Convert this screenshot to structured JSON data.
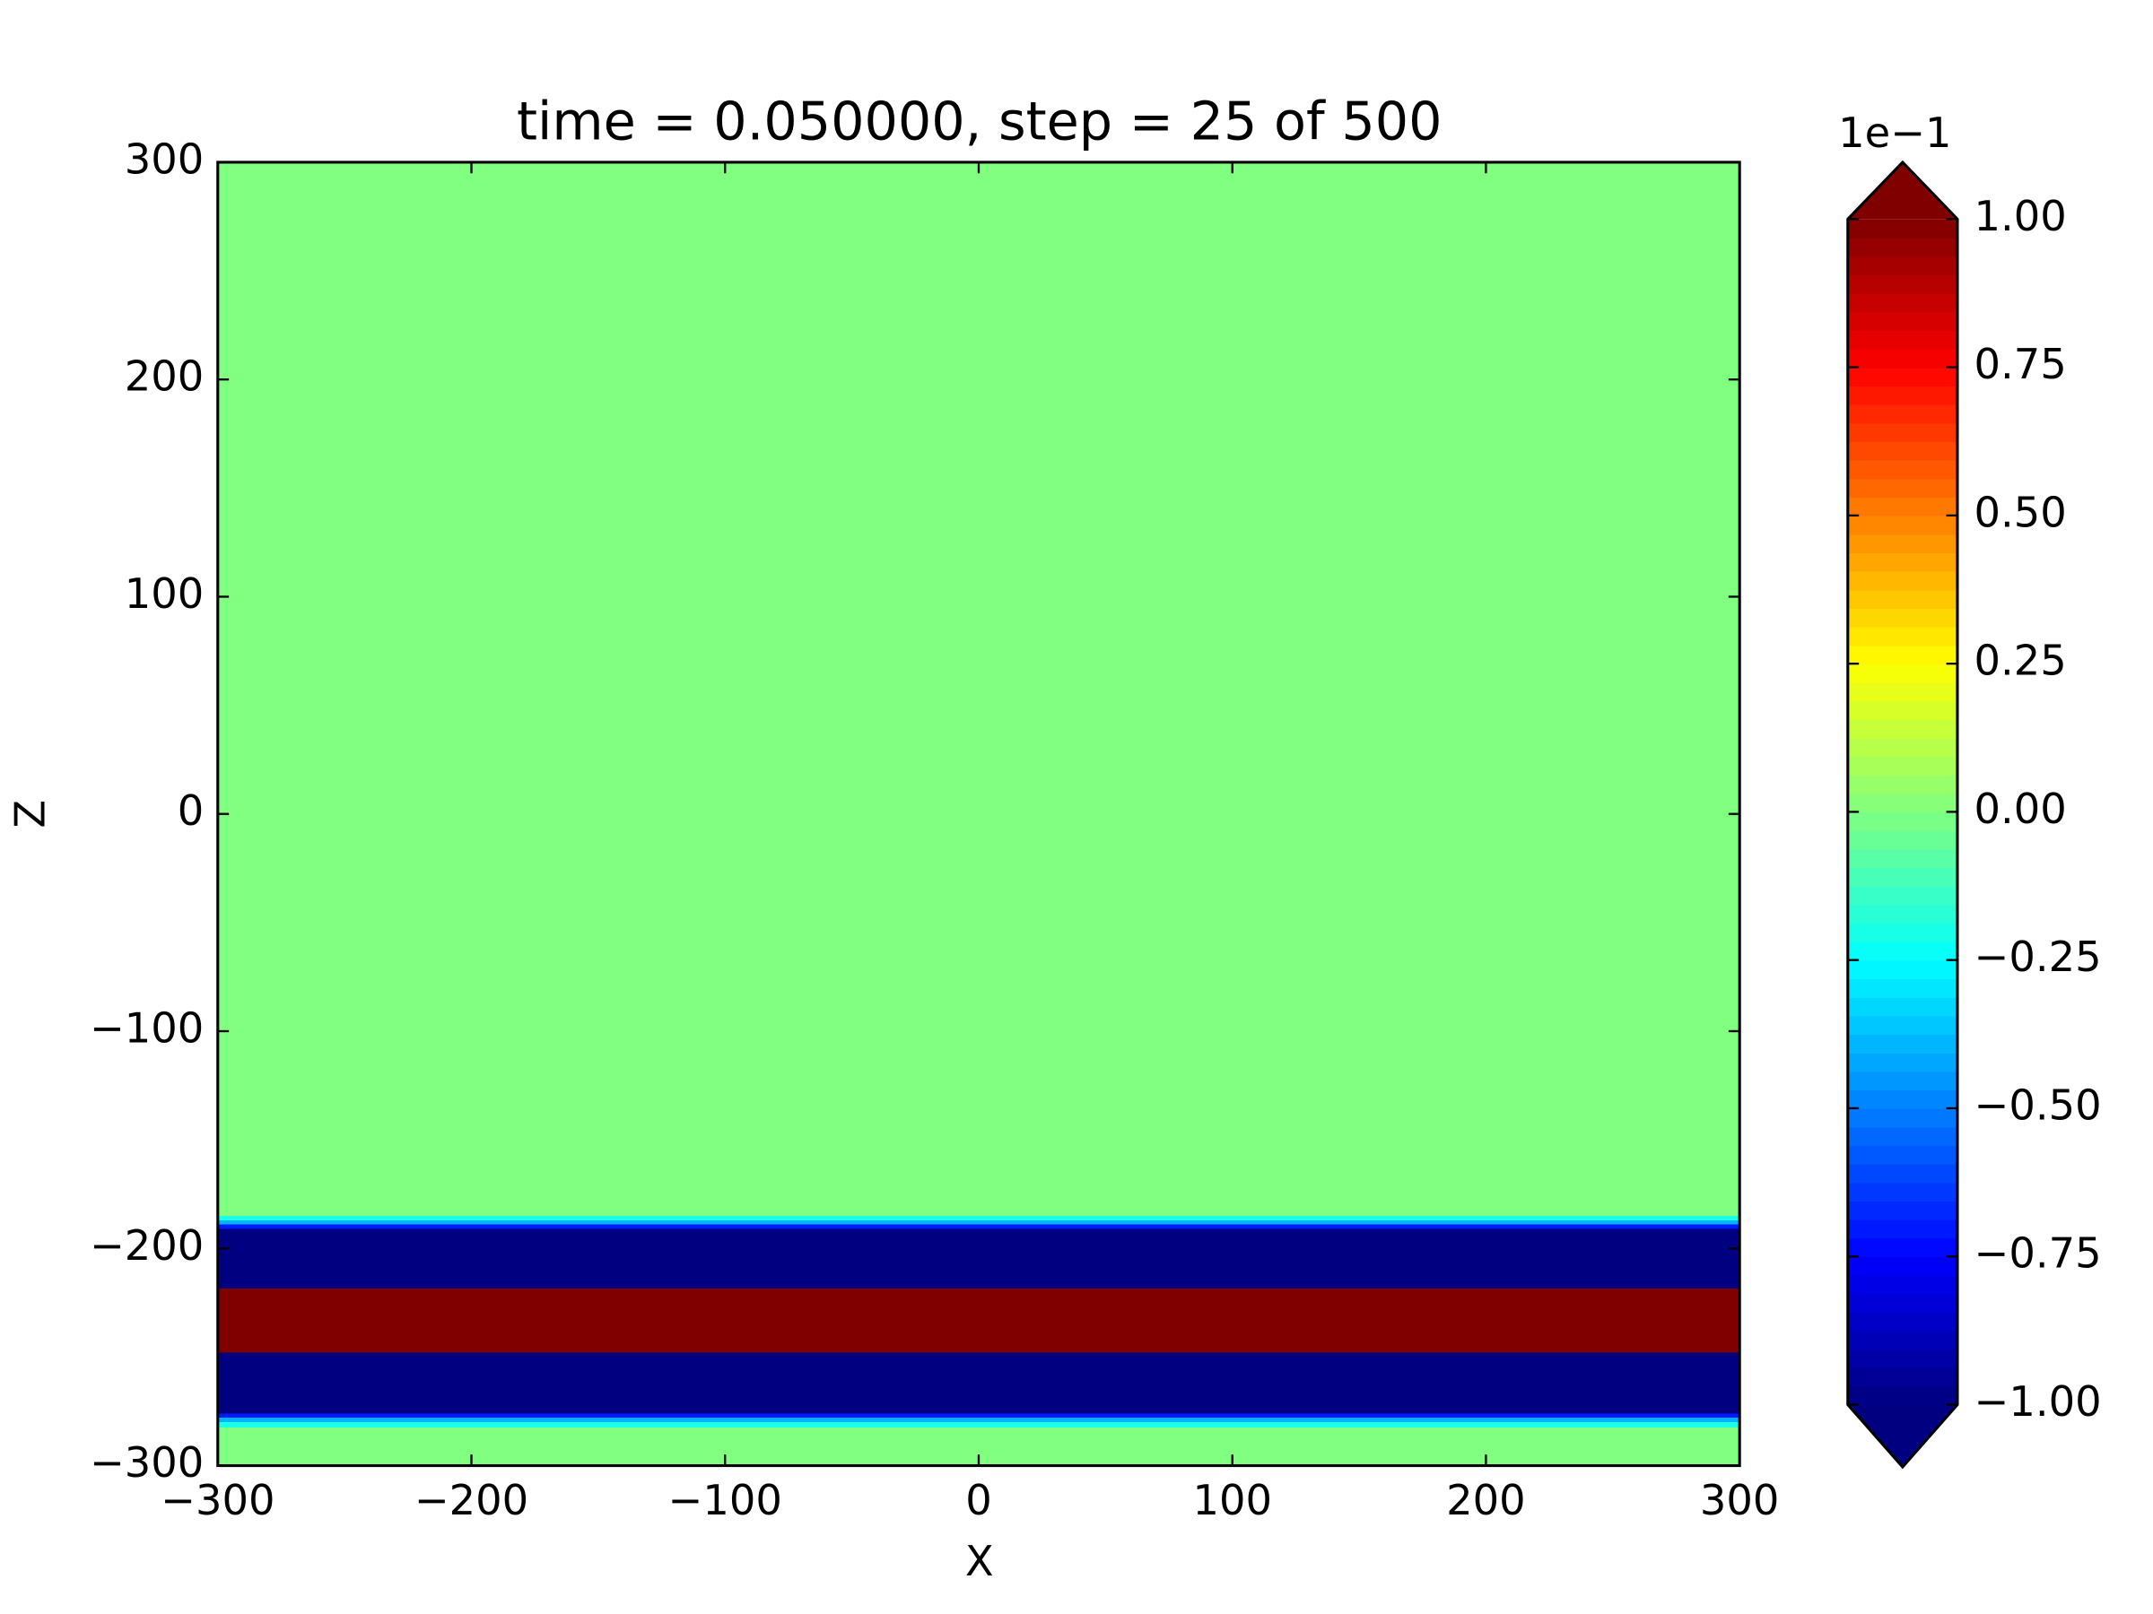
{
  "chart_data": {
    "type": "heatmap",
    "title": "time = 0.050000, step = 25 of 500",
    "x_label": "X",
    "y_label": "Z",
    "xlim": [
      -300,
      300
    ],
    "ylim": [
      -300,
      300
    ],
    "xticks": [
      {
        "value": -300,
        "label": "−300"
      },
      {
        "value": -200,
        "label": "−200"
      },
      {
        "value": -100,
        "label": "−100"
      },
      0,
      100,
      200,
      300
    ],
    "yticks": [
      {
        "value": -300,
        "label": "−300"
      },
      {
        "value": -200,
        "label": "−200"
      },
      {
        "value": -100,
        "label": "−100"
      },
      0,
      100,
      200,
      300
    ],
    "colormap": "jet",
    "clim": [
      -1,
      1
    ],
    "colorbar_offset": "1e−1",
    "colorbar_ticks": [
      {
        "value": -1,
        "label": "−1.00"
      },
      {
        "value": -0.75,
        "label": "−0.75"
      },
      {
        "value": -0.5,
        "label": "−0.50"
      },
      {
        "value": -0.25,
        "label": "−0.25"
      },
      {
        "value": 0,
        "label": "0.00"
      },
      {
        "value": 0.25,
        "label": "0.25"
      },
      {
        "value": 0.5,
        "label": "0.50"
      },
      {
        "value": 0.75,
        "label": "0.75"
      },
      {
        "value": 1,
        "label": "1.00"
      }
    ],
    "profile": {
      "z": [
        -300,
        -284,
        -281,
        -279,
        -277,
        -275,
        -250,
        -246,
        -219,
        -218,
        -192,
        -190,
        -188,
        -186,
        -184,
        300
      ],
      "values": [
        0,
        0,
        -0.2,
        -0.4,
        -0.7,
        -1,
        -1,
        1,
        1,
        -1,
        -1,
        -0.7,
        -0.4,
        -0.2,
        0,
        0
      ]
    }
  }
}
